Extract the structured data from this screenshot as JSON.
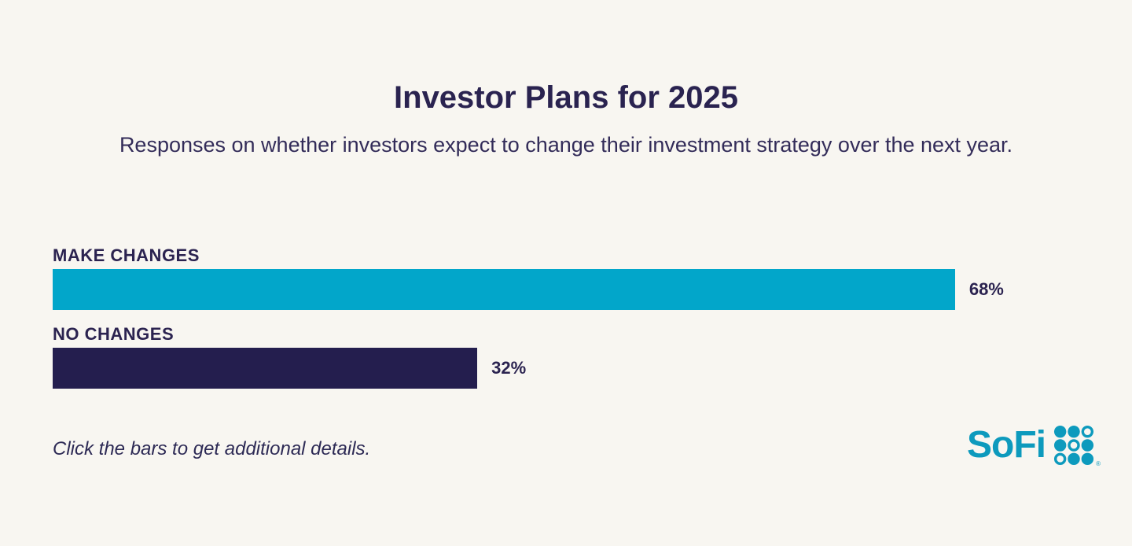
{
  "page": {
    "background": "#F8F6F1"
  },
  "header": {
    "title": "Investor Plans for 2025",
    "subtitle": "Responses on whether investors expect to change their investment strategy over the next year."
  },
  "chart_data": {
    "type": "bar",
    "orientation": "horizontal",
    "title": "Investor Plans for 2025",
    "subtitle": "Responses on whether investors expect to change their investment strategy over the next year.",
    "categories": [
      "MAKE CHANGES",
      "NO CHANGES"
    ],
    "values": [
      68,
      32
    ],
    "value_labels": [
      "68%",
      "32%"
    ],
    "bar_colors": [
      "#02A6CA",
      "#241E4E"
    ],
    "xlim": [
      0,
      100
    ],
    "grid": false,
    "legend": "none",
    "value_label_position": "right-of-bar",
    "category_label_position": "above-bar"
  },
  "footer": {
    "note": "Click the bars to get additional details.",
    "logo_text": "SoFi",
    "logo_trademark": "®"
  },
  "colors": {
    "background": "#F8F6F1",
    "text_navy": "#2B2350",
    "bar_teal": "#02A6CA",
    "bar_navy": "#241E4E",
    "logo_teal": "#0D9ABD"
  }
}
